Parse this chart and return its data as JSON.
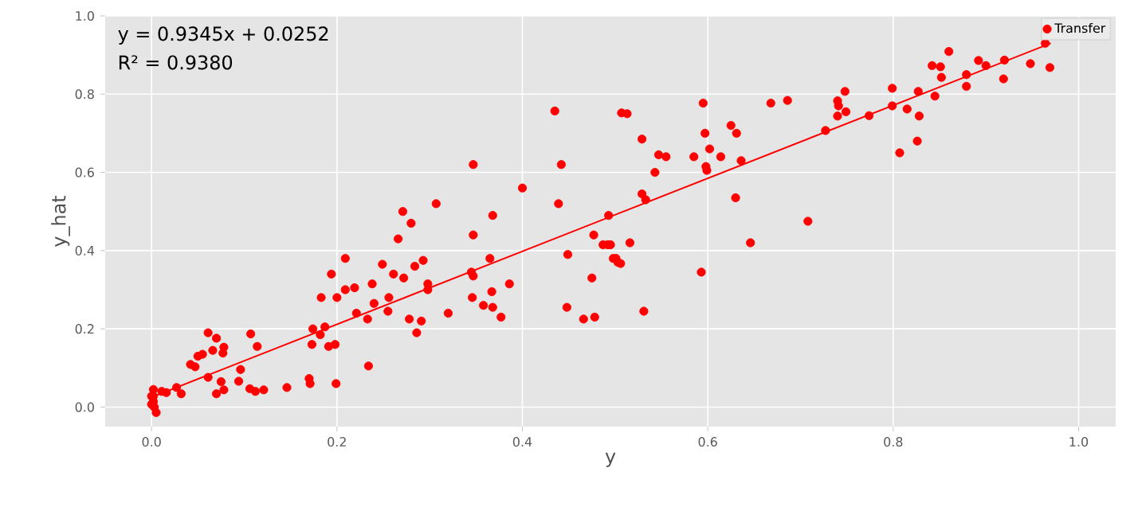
{
  "chart_data": {
    "type": "scatter",
    "xlabel": "y",
    "ylabel": "y_hat",
    "annotations": [
      "y = 0.9345x + 0.0252",
      "R² = 0.9380"
    ],
    "xlim": [
      -0.05,
      1.04
    ],
    "ylim": [
      -0.05,
      1.0
    ],
    "xticks": [
      {
        "value": 0,
        "label": "0.0"
      },
      {
        "value": 0.2,
        "label": "0.2"
      },
      {
        "value": 0.4,
        "label": "0.4"
      },
      {
        "value": 0.6,
        "label": "0.6"
      },
      {
        "value": 0.8,
        "label": "0.8"
      },
      {
        "value": 1.0,
        "label": "1.0"
      }
    ],
    "yticks": [
      {
        "value": 0,
        "label": "0.0"
      },
      {
        "value": 0.2,
        "label": "0.2"
      },
      {
        "value": 0.4,
        "label": "0.4"
      },
      {
        "value": 0.6,
        "label": "0.6"
      },
      {
        "value": 0.8,
        "label": "0.8"
      },
      {
        "value": 1.0,
        "label": "1.0"
      }
    ],
    "grid": true,
    "legend": "top right",
    "series": [
      {
        "name": "Transfer",
        "color": "#ff0000",
        "marker": "circle",
        "x": [
          0.435,
          0.507,
          0.347,
          0.442,
          0.4,
          0.439,
          0.307,
          0.271,
          0.368,
          0.28,
          0.347,
          0.477,
          0.493,
          0.266,
          0.487,
          0.492,
          0.209,
          0.365,
          0.449,
          0.498,
          0.503,
          0.293,
          0.249,
          0.284,
          0.194,
          0.261,
          0.272,
          0.345,
          0.347,
          0.475,
          0.238,
          0.298,
          0.298,
          0.209,
          0.219,
          0.2,
          0.183,
          0.256,
          0.24,
          0.367,
          0.386,
          0.346,
          0.358,
          0.368,
          0.377,
          0.448,
          0.466,
          0.478,
          0.221,
          0.255,
          0.233,
          0.278,
          0.291,
          0.286,
          0.32,
          0.174,
          0.187,
          0.182,
          0.173,
          0.191,
          0.198,
          0.234,
          0.199,
          0.17,
          0.171,
          0.146,
          0.121,
          0.112,
          0.106,
          0.107,
          0.114,
          0.096,
          0.094,
          0.078,
          0.07,
          0.075,
          0.078,
          0.077,
          0.07,
          0.061,
          0.066,
          0.055,
          0.05,
          0.061,
          0.047,
          0.042,
          0.027,
          0.032,
          0.016,
          0.011,
          0.002,
          0.002,
          0.002,
          0.003,
          0.005,
          0.0,
          0.0,
          0.513,
          0.529,
          0.543,
          0.547,
          0.555,
          0.529,
          0.533,
          0.495,
          0.516,
          0.501,
          0.506,
          0.531,
          0.585,
          0.595,
          0.597,
          0.602,
          0.598,
          0.599,
          0.614,
          0.625,
          0.631,
          0.636,
          0.63,
          0.646,
          0.593,
          0.668,
          0.686,
          0.708,
          0.727,
          0.74,
          0.741,
          0.74,
          0.748,
          0.749,
          0.774,
          0.799,
          0.799,
          0.815,
          0.807,
          0.827,
          0.828,
          0.826,
          0.845,
          0.842,
          0.851,
          0.852,
          0.86,
          0.879,
          0.879,
          0.892,
          0.9,
          0.92,
          0.919,
          0.948,
          0.969,
          0.964
        ],
        "values": [
          0.757,
          0.752,
          0.62,
          0.62,
          0.56,
          0.52,
          0.52,
          0.5,
          0.49,
          0.47,
          0.44,
          0.44,
          0.49,
          0.43,
          0.415,
          0.415,
          0.38,
          0.38,
          0.39,
          0.38,
          0.37,
          0.375,
          0.365,
          0.36,
          0.34,
          0.34,
          0.33,
          0.345,
          0.335,
          0.33,
          0.315,
          0.315,
          0.3,
          0.3,
          0.305,
          0.28,
          0.28,
          0.28,
          0.265,
          0.295,
          0.315,
          0.28,
          0.26,
          0.255,
          0.23,
          0.255,
          0.225,
          0.23,
          0.24,
          0.245,
          0.225,
          0.225,
          0.22,
          0.19,
          0.24,
          0.2,
          0.205,
          0.185,
          0.16,
          0.155,
          0.16,
          0.105,
          0.06,
          0.073,
          0.06,
          0.05,
          0.044,
          0.04,
          0.047,
          0.187,
          0.155,
          0.096,
          0.066,
          0.044,
          0.034,
          0.065,
          0.153,
          0.138,
          0.176,
          0.19,
          0.145,
          0.135,
          0.13,
          0.076,
          0.103,
          0.109,
          0.05,
          0.034,
          0.037,
          0.04,
          0.045,
          0.028,
          0.014,
          0.0,
          -0.014,
          0.028,
          0.007,
          0.75,
          0.685,
          0.6,
          0.645,
          0.64,
          0.545,
          0.53,
          0.415,
          0.42,
          0.38,
          0.367,
          0.245,
          0.64,
          0.777,
          0.7,
          0.66,
          0.615,
          0.605,
          0.64,
          0.72,
          0.7,
          0.63,
          0.535,
          0.42,
          0.345,
          0.777,
          0.784,
          0.475,
          0.707,
          0.783,
          0.77,
          0.744,
          0.807,
          0.755,
          0.745,
          0.815,
          0.77,
          0.762,
          0.65,
          0.807,
          0.744,
          0.68,
          0.795,
          0.873,
          0.87,
          0.843,
          0.909,
          0.85,
          0.82,
          0.886,
          0.873,
          0.887,
          0.839,
          0.878,
          0.868,
          0.93
        ]
      },
      {
        "type": "line",
        "color": "#ff0000",
        "marker": "none",
        "x": [
          0,
          0.97
        ],
        "values": [
          0.025,
          0.93
        ]
      }
    ]
  }
}
